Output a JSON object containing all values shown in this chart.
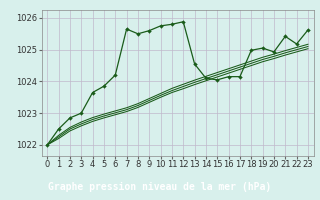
{
  "title": "Graphe pression niveau de la mer (hPa)",
  "bg_color": "#d8f0ec",
  "grid_color": "#c0b8cc",
  "line_color": "#1a5c1a",
  "label_color": "#1a5c1a",
  "ylim": [
    1021.65,
    1026.25
  ],
  "xlim": [
    -0.5,
    23.5
  ],
  "yticks": [
    1022,
    1023,
    1024,
    1025,
    1026
  ],
  "xticks": [
    0,
    1,
    2,
    3,
    4,
    5,
    6,
    7,
    8,
    9,
    10,
    11,
    12,
    13,
    14,
    15,
    16,
    17,
    18,
    19,
    20,
    21,
    22,
    23
  ],
  "series_main": [
    1022.0,
    1022.5,
    1022.85,
    1023.0,
    1023.65,
    1023.85,
    1024.2,
    1025.65,
    1025.5,
    1025.6,
    1025.75,
    1025.8,
    1025.88,
    1024.55,
    1024.1,
    1024.05,
    1024.15,
    1024.15,
    1024.98,
    1025.05,
    1024.93,
    1025.42,
    1025.18,
    1025.62
  ],
  "series_trend1": [
    1022.0,
    1022.3,
    1022.55,
    1022.72,
    1022.86,
    1022.97,
    1023.07,
    1023.17,
    1023.3,
    1023.46,
    1023.62,
    1023.78,
    1023.91,
    1024.04,
    1024.16,
    1024.28,
    1024.4,
    1024.52,
    1024.64,
    1024.76,
    1024.86,
    1024.97,
    1025.07,
    1025.17
  ],
  "series_trend2": [
    1022.0,
    1022.25,
    1022.5,
    1022.66,
    1022.8,
    1022.91,
    1023.01,
    1023.11,
    1023.24,
    1023.4,
    1023.56,
    1023.71,
    1023.84,
    1023.97,
    1024.09,
    1024.21,
    1024.33,
    1024.45,
    1024.57,
    1024.69,
    1024.79,
    1024.9,
    1025.0,
    1025.1
  ],
  "series_trend3": [
    1022.0,
    1022.2,
    1022.44,
    1022.6,
    1022.74,
    1022.85,
    1022.95,
    1023.05,
    1023.18,
    1023.34,
    1023.5,
    1023.65,
    1023.77,
    1023.9,
    1024.02,
    1024.14,
    1024.26,
    1024.38,
    1024.5,
    1024.62,
    1024.72,
    1024.83,
    1024.93,
    1025.03
  ],
  "tick_fontsize": 6,
  "xlabel_fontsize": 7,
  "bottom_bar_color": "#2a6e2a",
  "bottom_bar_bg": "#4a8a4a"
}
